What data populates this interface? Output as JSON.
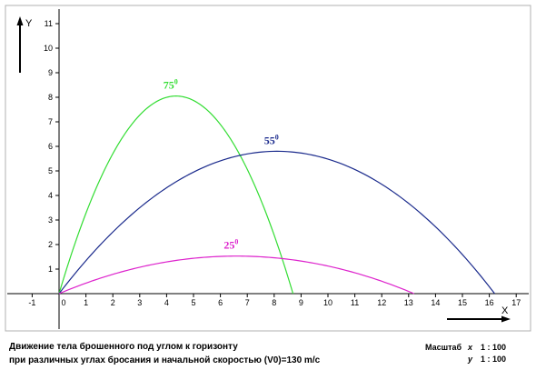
{
  "chart_data": {
    "type": "line",
    "title": "",
    "xlabel": "X",
    "ylabel": "Y",
    "xlim": [
      -1,
      17
    ],
    "ylim": [
      0,
      11
    ],
    "x_ticks": [
      "-1",
      "0",
      "1",
      "2",
      "3",
      "4",
      "5",
      "6",
      "7",
      "8",
      "9",
      "10",
      "11",
      "12",
      "13",
      "14",
      "15",
      "16",
      "17"
    ],
    "y_ticks": [
      "1",
      "2",
      "3",
      "4",
      "5",
      "6",
      "7",
      "8",
      "9",
      "10",
      "11"
    ],
    "grid": false,
    "series": [
      {
        "angle_value": "75",
        "angle_sup": "0",
        "color": "#33dd33",
        "apex": [
          4.35,
          8.05
        ],
        "range": 8.7
      },
      {
        "angle_value": "55",
        "angle_sup": "0",
        "color": "#1a2a8c",
        "apex": [
          8.1,
          5.8
        ],
        "range": 16.2
      },
      {
        "angle_value": "25",
        "angle_sup": "0",
        "color": "#dd22cc",
        "apex": [
          6.6,
          1.53
        ],
        "range": 13.2
      }
    ]
  },
  "caption": {
    "line1": "Движение тела брошенного под углом к горизонту",
    "line2": "при различных углах бросания и начальной скоростью (V0)=130 m/c"
  },
  "scale": {
    "label": "Масштаб",
    "x_axis": "x",
    "x_value": "1  :  100",
    "y_axis": "y",
    "y_value": "1  :  100"
  }
}
